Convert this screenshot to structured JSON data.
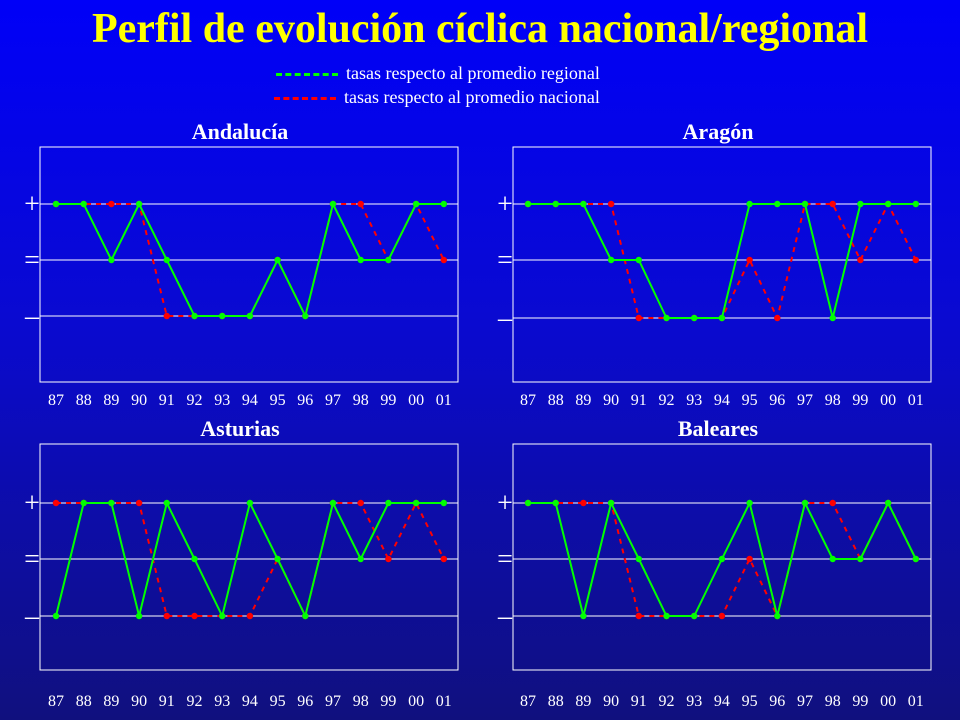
{
  "title": "Perfil de evolución cíclica nacional/regional",
  "legend": [
    {
      "label": "tasas respecto al promedio regional",
      "color": "#00ff00"
    },
    {
      "label": "tasas respecto al promedio nacional",
      "color": "#ff0000"
    }
  ],
  "colors": {
    "regional": "#00ff00",
    "nacional": "#ff0000",
    "title": "#ffff00",
    "axes": "#ffffff"
  },
  "chart_data": [
    {
      "type": "line",
      "title": "Andalucía",
      "categories": [
        "87",
        "88",
        "89",
        "90",
        "91",
        "92",
        "93",
        "94",
        "95",
        "96",
        "97",
        "98",
        "99",
        "00",
        "01"
      ],
      "y_levels": [
        "+",
        "=",
        "–"
      ],
      "ylim": [
        -1,
        1
      ],
      "series": [
        {
          "key": "regional",
          "values": [
            1,
            1,
            0,
            1,
            0,
            -1,
            -1,
            -1,
            0,
            -1,
            1,
            0,
            0,
            1,
            1
          ]
        },
        {
          "key": "nacional",
          "values": [
            1,
            1,
            1,
            1,
            -1,
            -1,
            -1,
            -1,
            0,
            -1,
            1,
            1,
            0,
            1,
            0
          ]
        }
      ]
    },
    {
      "type": "line",
      "title": "Aragón",
      "categories": [
        "87",
        "88",
        "89",
        "90",
        "91",
        "92",
        "93",
        "94",
        "95",
        "96",
        "97",
        "98",
        "99",
        "00",
        "01"
      ],
      "y_levels": [
        "+",
        "=",
        "–"
      ],
      "ylim": [
        -1,
        1
      ],
      "series": [
        {
          "key": "regional",
          "values": [
            1,
            1,
            1,
            0,
            0,
            -1,
            -1,
            -1,
            1,
            1,
            1,
            -1,
            1,
            1,
            1
          ]
        },
        {
          "key": "nacional",
          "values": [
            1,
            1,
            1,
            1,
            -1,
            -1,
            -1,
            -1,
            0,
            -1,
            1,
            1,
            0,
            1,
            0
          ]
        }
      ]
    },
    {
      "type": "line",
      "title": "Asturias",
      "categories": [
        "87",
        "88",
        "89",
        "90",
        "91",
        "92",
        "93",
        "94",
        "95",
        "96",
        "97",
        "98",
        "99",
        "00",
        "01"
      ],
      "y_levels": [
        "+",
        "=",
        "–"
      ],
      "ylim": [
        -1,
        1
      ],
      "series": [
        {
          "key": "regional",
          "values": [
            -1,
            1,
            1,
            -1,
            1,
            0,
            -1,
            1,
            0,
            -1,
            1,
            0,
            1,
            1,
            1
          ]
        },
        {
          "key": "nacional",
          "values": [
            1,
            1,
            1,
            1,
            -1,
            -1,
            -1,
            -1,
            0,
            -1,
            1,
            1,
            0,
            1,
            0
          ]
        }
      ]
    },
    {
      "type": "line",
      "title": "Baleares",
      "categories": [
        "87",
        "88",
        "89",
        "90",
        "91",
        "92",
        "93",
        "94",
        "95",
        "96",
        "97",
        "98",
        "99",
        "00",
        "01"
      ],
      "y_levels": [
        "+",
        "=",
        "–"
      ],
      "ylim": [
        -1,
        1
      ],
      "series": [
        {
          "key": "regional",
          "values": [
            1,
            1,
            -1,
            1,
            0,
            -1,
            -1,
            0,
            1,
            -1,
            1,
            0,
            0,
            1,
            0
          ]
        },
        {
          "key": "nacional",
          "values": [
            1,
            1,
            1,
            1,
            -1,
            -1,
            -1,
            -1,
            0,
            -1,
            1,
            1,
            0,
            1,
            0
          ]
        }
      ]
    }
  ]
}
